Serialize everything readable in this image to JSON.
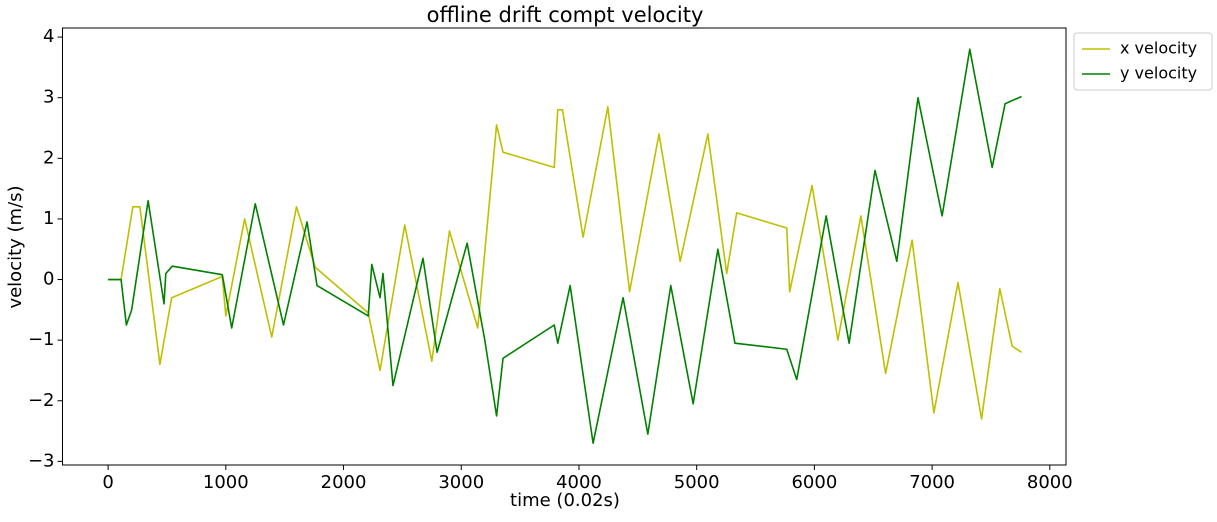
{
  "chart_data": {
    "type": "line",
    "title": "offline drift compt velocity",
    "xlabel": "time (0.02s)",
    "ylabel": "velocity (m/s)",
    "xlim": [
      -387.5,
      8137.5
    ],
    "ylim": [
      -3.06,
      4.15
    ],
    "xticks": [
      0,
      1000,
      2000,
      3000,
      4000,
      5000,
      6000,
      7000,
      8000
    ],
    "yticks": [
      {
        "value": -3,
        "label": "−3"
      },
      {
        "value": -2,
        "label": "−2"
      },
      {
        "value": -1,
        "label": "−1"
      },
      0,
      1,
      2,
      3,
      4
    ],
    "legend": "upper right outside",
    "series": [
      {
        "name": "x velocity",
        "color": "#bfbf00",
        "x": [
          0,
          110,
          210,
          270,
          440,
          540,
          970,
          1000,
          1160,
          1390,
          1600,
          1760,
          2210,
          2310,
          2520,
          2750,
          2900,
          3140,
          3300,
          3355,
          3790,
          3820,
          3860,
          4035,
          4245,
          4430,
          4680,
          4860,
          5095,
          5255,
          5340,
          5765,
          5790,
          5980,
          6200,
          6395,
          6605,
          6830,
          7015,
          7220,
          7420,
          7575,
          7680,
          7760
        ],
        "values": [
          0,
          0,
          1.2,
          1.2,
          -1.4,
          -0.3,
          0.05,
          -0.6,
          1.0,
          -0.95,
          1.2,
          0.2,
          -0.55,
          -1.5,
          0.9,
          -1.35,
          0.8,
          -0.8,
          2.55,
          2.1,
          1.85,
          2.8,
          2.8,
          0.7,
          2.85,
          -0.2,
          2.4,
          0.3,
          2.4,
          0.1,
          1.1,
          0.85,
          -0.2,
          1.55,
          -1.0,
          1.05,
          -1.55,
          0.65,
          -2.2,
          -0.05,
          -2.3,
          -0.15,
          -1.1,
          -1.2
        ]
      },
      {
        "name": "y velocity",
        "color": "#008000",
        "x": [
          0,
          110,
          155,
          200,
          340,
          475,
          490,
          545,
          970,
          1050,
          1250,
          1490,
          1690,
          1775,
          2210,
          2240,
          2310,
          2335,
          2420,
          2675,
          2795,
          3050,
          3200,
          3300,
          3355,
          3790,
          3820,
          3925,
          4120,
          4375,
          4585,
          4780,
          4970,
          5180,
          5325,
          5765,
          5850,
          6100,
          6295,
          6515,
          6700,
          6880,
          7085,
          7320,
          7510,
          7620,
          7760
        ],
        "values": [
          0,
          0,
          -0.75,
          -0.5,
          1.3,
          -0.4,
          0.1,
          0.22,
          0.08,
          -0.8,
          1.25,
          -0.75,
          0.95,
          -0.1,
          -0.6,
          0.25,
          -0.3,
          0.1,
          -1.75,
          0.35,
          -1.2,
          0.6,
          -1.0,
          -2.25,
          -1.3,
          -0.75,
          -1.05,
          -0.1,
          -2.7,
          -0.3,
          -2.55,
          -0.1,
          -2.05,
          0.5,
          -1.05,
          -1.15,
          -1.65,
          1.05,
          -1.05,
          1.8,
          0.3,
          3.0,
          1.05,
          3.8,
          1.85,
          2.9,
          3.02
        ]
      }
    ]
  }
}
